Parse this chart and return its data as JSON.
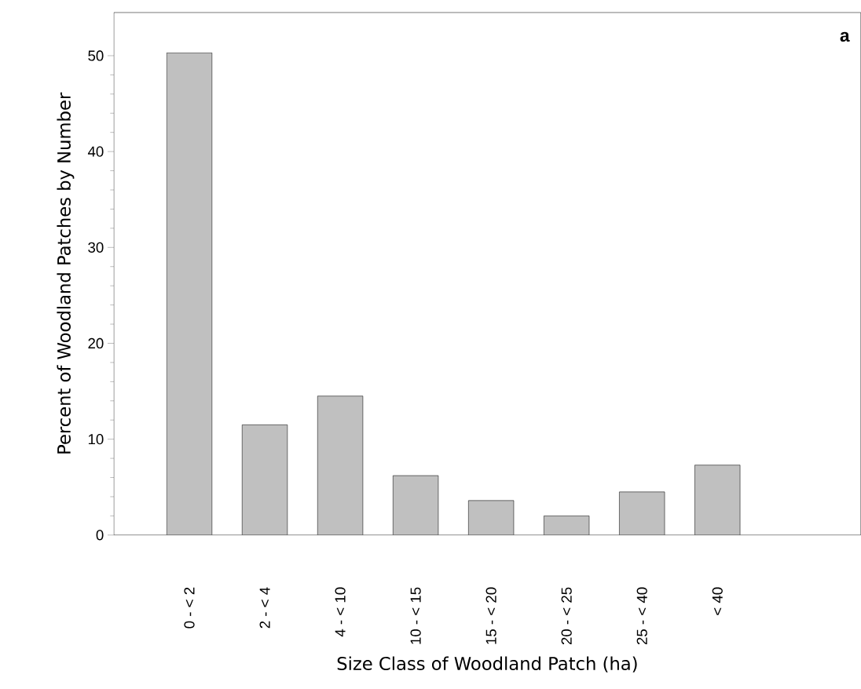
{
  "chart_data": {
    "type": "bar",
    "xlabel": "Size Class of Woodland Patch (ha)",
    "ylabel": "Percent of Woodland Patches by Number",
    "categories": [
      "0 - < 2",
      "2 - < 4",
      "4 - < 10",
      "10 - < 15",
      "15 - < 20",
      "20 - < 25",
      "25 - < 40",
      "< 40"
    ],
    "values": [
      50.3,
      11.5,
      14.5,
      6.2,
      3.6,
      2.0,
      4.5,
      7.3
    ],
    "color": "#c0c0c0",
    "ylim": [
      0,
      54.5
    ],
    "yticks": [
      0,
      10,
      20,
      30,
      40,
      50
    ],
    "grid": false,
    "annotations": [
      "a"
    ]
  }
}
